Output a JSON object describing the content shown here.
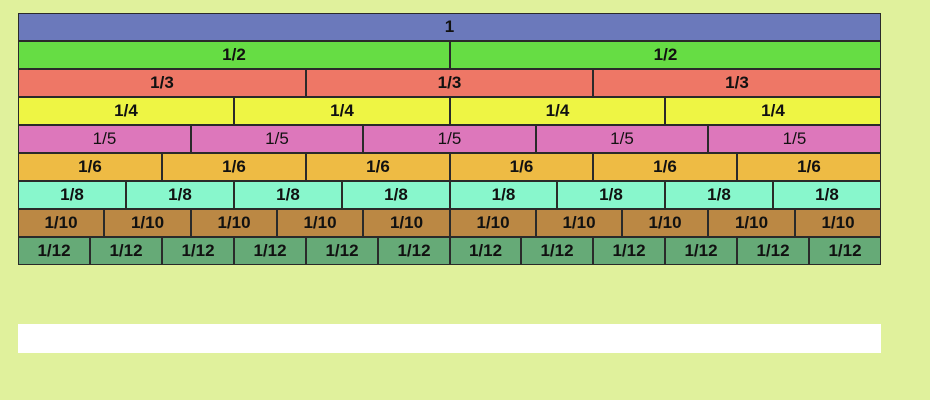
{
  "rows": [
    {
      "id": "r1",
      "color": "#6b79bb",
      "pieces": [
        "1"
      ]
    },
    {
      "id": "r2",
      "color": "#66dd44",
      "pieces": [
        "1/2",
        "1/2"
      ]
    },
    {
      "id": "r3",
      "color": "#ee7766",
      "pieces": [
        "1/3",
        "1/3",
        "1/3"
      ]
    },
    {
      "id": "r4",
      "color": "#eef544",
      "pieces": [
        "1/4",
        "1/4",
        "1/4",
        "1/4"
      ]
    },
    {
      "id": "r5",
      "color": "#dd77bb",
      "pieces": [
        "1/5",
        "1/5",
        "1/5",
        "1/5",
        "1/5"
      ]
    },
    {
      "id": "r6",
      "color": "#eebb44",
      "pieces": [
        "1/6",
        "1/6",
        "1/6",
        "1/6",
        "1/6",
        "1/6"
      ]
    },
    {
      "id": "r8",
      "color": "#88f7cc",
      "pieces": [
        "1/8",
        "1/8",
        "1/8",
        "1/8",
        "1/8",
        "1/8",
        "1/8",
        "1/8"
      ]
    },
    {
      "id": "r10",
      "color": "#bb8844",
      "pieces": [
        "1/10",
        "1/10",
        "1/10",
        "1/10",
        "1/10",
        "1/10",
        "1/10",
        "1/10",
        "1/10",
        "1/10"
      ]
    },
    {
      "id": "r12",
      "color": "#66aa77",
      "pieces": [
        "1/12",
        "1/12",
        "1/12",
        "1/12",
        "1/12",
        "1/12",
        "1/12",
        "1/12",
        "1/12",
        "1/12",
        "1/12",
        "1/12"
      ]
    }
  ],
  "answer_area": {
    "value": ""
  }
}
